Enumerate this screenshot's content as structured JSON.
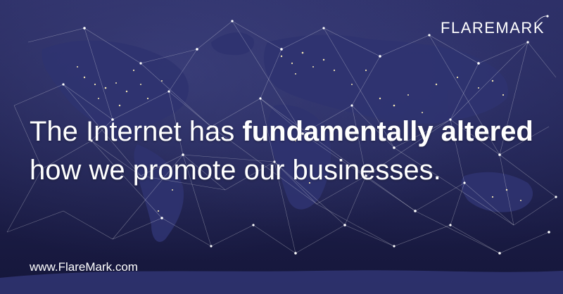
{
  "brand": {
    "name": "FLAREMARK"
  },
  "headline": {
    "part1": "The Internet has ",
    "emphasis": "fundamentally altered",
    "line2": "how we promote our businesses."
  },
  "footer": {
    "url": "www.FlareMark.com"
  },
  "colors": {
    "background": "#202250",
    "text": "#ffffff"
  }
}
